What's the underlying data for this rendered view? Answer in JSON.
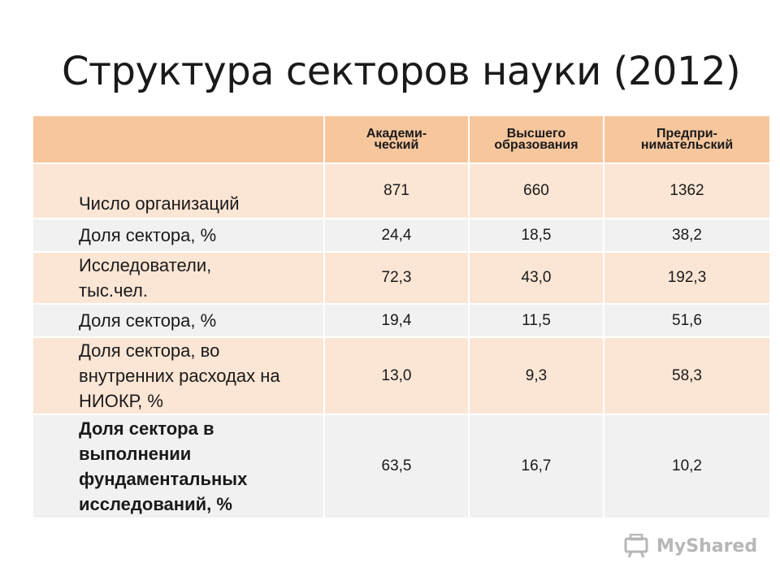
{
  "title": "Структура секторов науки (2012)",
  "table": {
    "columns": [
      {
        "line1": "Академи-",
        "line2": "ческий"
      },
      {
        "line1": "Высшего",
        "line2": "образования"
      },
      {
        "line1": "Предпри-",
        "line2": "нимательский"
      }
    ],
    "rows": [
      {
        "label": "Число организаций",
        "values": [
          "871",
          "660",
          "1362"
        ]
      },
      {
        "label": "Доля сектора, %",
        "values": [
          "24,4",
          "18,5",
          "38,2"
        ]
      },
      {
        "label": "Исследователи, тыс.чел.",
        "values": [
          "72,3",
          "43,0",
          "192,3"
        ]
      },
      {
        "label": "Доля сектора, %",
        "values": [
          "19,4",
          "11,5",
          "51,6"
        ]
      },
      {
        "label": "Доля сектора, во внутренних расходах на НИОКР, %",
        "values": [
          "13,0",
          "9,3",
          "58,3"
        ]
      },
      {
        "label": "Доля сектора в выполнении фундаментальных исследований, %",
        "values": [
          "63,5",
          "16,7",
          "10,2"
        ]
      }
    ]
  },
  "watermark": {
    "text": "MyShared",
    "icon": "myshared-logo-icon"
  }
}
